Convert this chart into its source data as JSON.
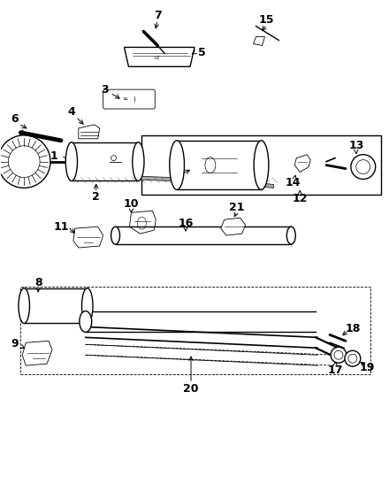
{
  "bg_color": "#ffffff",
  "line_color": "#000000",
  "fig_width": 4.4,
  "fig_height": 5.64,
  "dpi": 100,
  "gray": "#888888",
  "darkgray": "#444444"
}
